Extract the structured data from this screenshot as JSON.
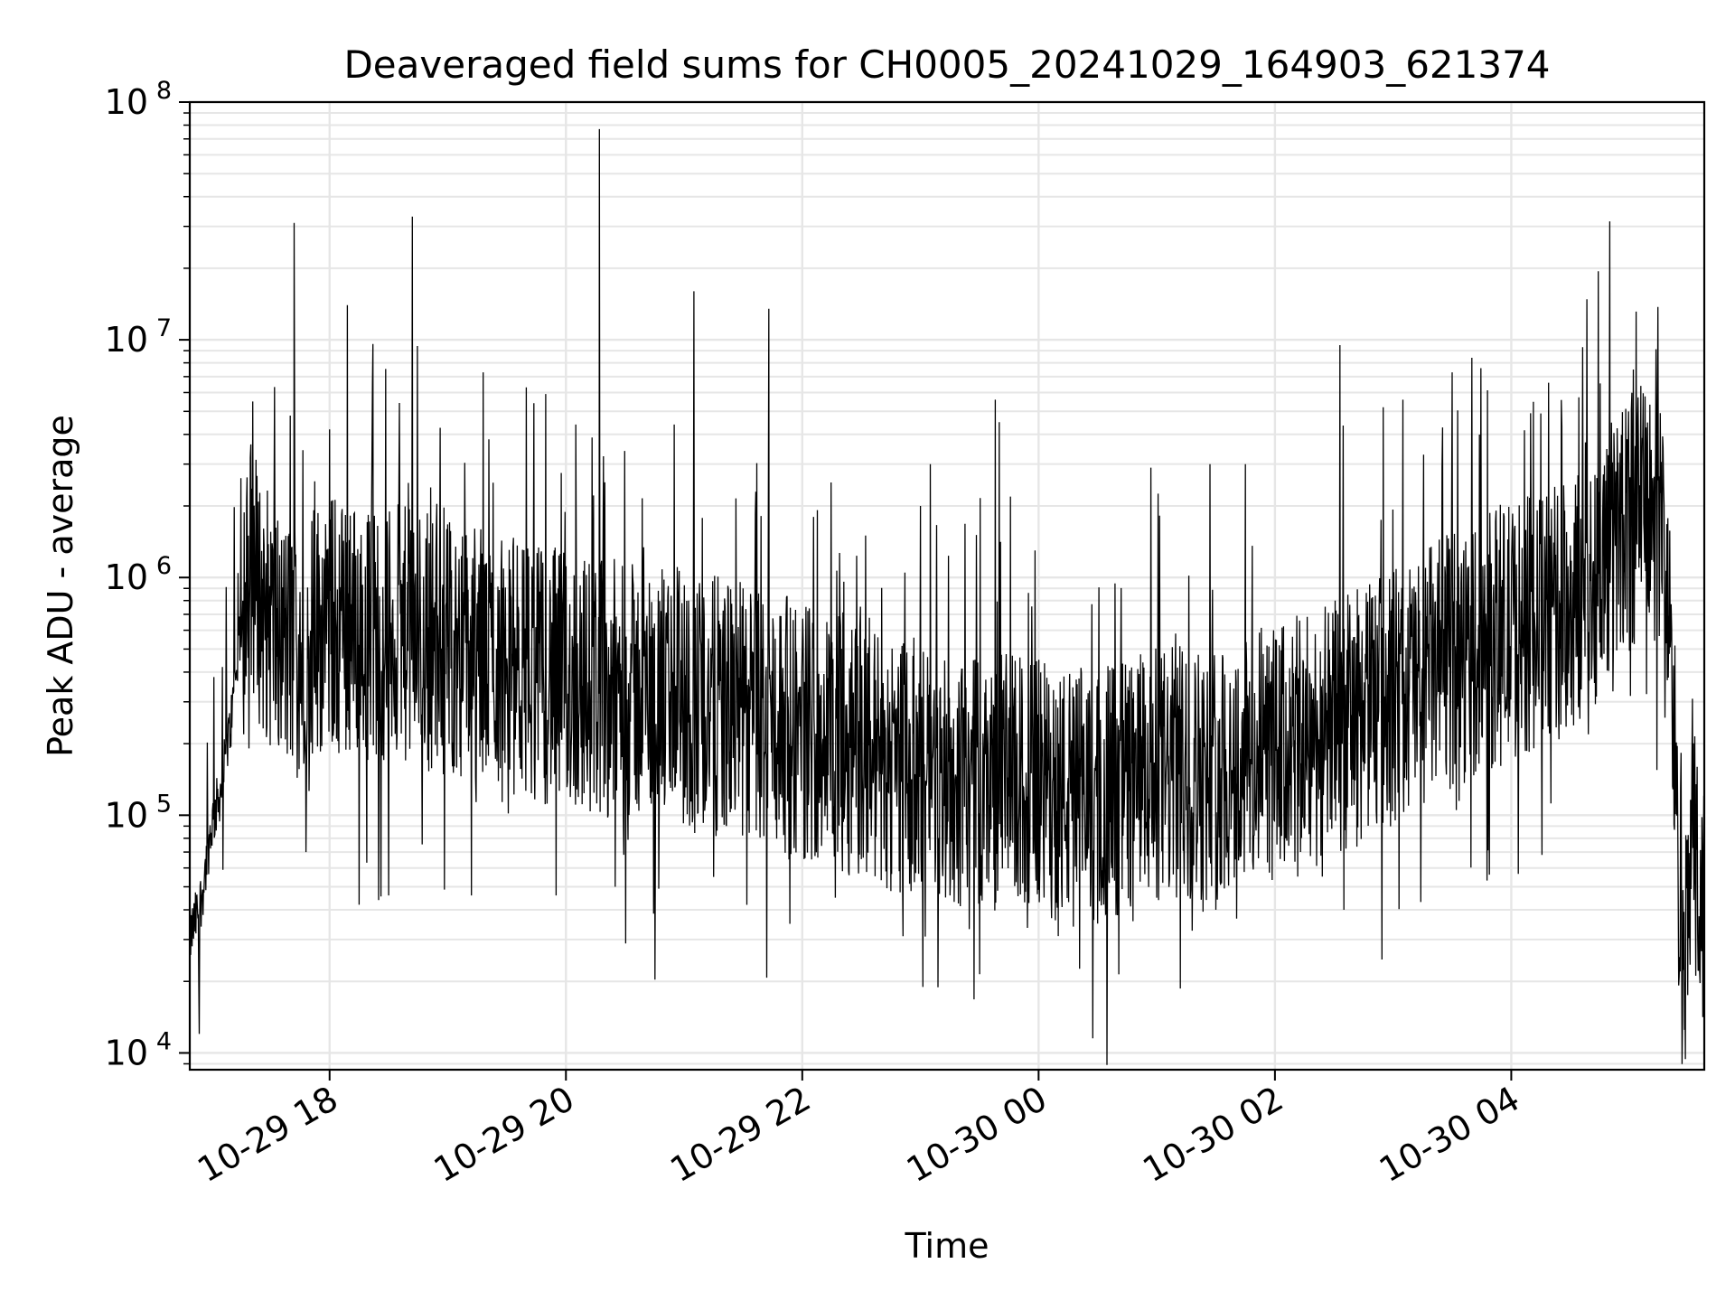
{
  "chart_data": {
    "type": "line",
    "title": "Deaveraged field sums for CH0005_20241029_164903_621374",
    "xlabel": "Time",
    "ylabel": "Peak ADU - average",
    "y_scale": "log",
    "ylim": [
      8500,
      100000000
    ],
    "xlim": [
      "2024-10-29 16:49",
      "2024-10-30 05:38"
    ],
    "x_ticks": [
      {
        "t": "2024-10-29 18:00",
        "label": "10-29 18"
      },
      {
        "t": "2024-10-29 20:00",
        "label": "10-29 20"
      },
      {
        "t": "2024-10-29 22:00",
        "label": "10-29 22"
      },
      {
        "t": "2024-10-30 00:00",
        "label": "10-30 00"
      },
      {
        "t": "2024-10-30 02:00",
        "label": "10-30 02"
      },
      {
        "t": "2024-10-30 04:00",
        "label": "10-30 04"
      }
    ],
    "y_ticks": [
      {
        "value": 10000,
        "base": "10",
        "exp": "4"
      },
      {
        "value": 100000,
        "base": "10",
        "exp": "5"
      },
      {
        "value": 1000000,
        "base": "10",
        "exp": "6"
      },
      {
        "value": 10000000,
        "base": "10",
        "exp": "7"
      },
      {
        "value": 100000000,
        "base": "10",
        "exp": "8"
      }
    ],
    "grid": true,
    "line_color": "#000000",
    "grid_color": "#e6e6e6",
    "series": [
      {
        "points": [
          [
            "2024-10-29 16:49",
            30000
          ],
          [
            "2024-10-29 16:55",
            45000
          ],
          [
            "2024-10-29 17:00",
            90000
          ],
          [
            "2024-10-29 17:05",
            130000
          ],
          [
            "2024-10-29 17:10",
            250000
          ],
          [
            "2024-10-29 17:15",
            600000
          ],
          [
            "2024-10-29 17:20",
            1200000
          ],
          [
            "2024-10-29 17:25",
            800000
          ],
          [
            "2024-10-29 17:30",
            650000
          ],
          [
            "2024-10-29 17:35",
            550000
          ],
          [
            "2024-10-29 17:40",
            500000
          ],
          [
            "2024-10-29 17:50",
            600000
          ],
          [
            "2024-10-29 18:00",
            650000
          ],
          [
            "2024-10-29 18:15",
            600000
          ],
          [
            "2024-10-29 18:30",
            580000
          ],
          [
            "2024-10-29 18:45",
            560000
          ],
          [
            "2024-10-29 19:00",
            520000
          ],
          [
            "2024-10-29 19:15",
            480000
          ],
          [
            "2024-10-29 19:30",
            440000
          ],
          [
            "2024-10-29 19:45",
            400000
          ],
          [
            "2024-10-29 20:00",
            370000
          ],
          [
            "2024-10-29 20:15",
            350000
          ],
          [
            "2024-10-29 20:30",
            330000
          ],
          [
            "2024-10-29 20:45",
            320000
          ],
          [
            "2024-10-29 21:00",
            300000
          ],
          [
            "2024-10-29 21:15",
            290000
          ],
          [
            "2024-10-29 21:30",
            270000
          ],
          [
            "2024-10-29 21:45",
            250000
          ],
          [
            "2024-10-29 22:00",
            230000
          ],
          [
            "2024-10-29 22:15",
            210000
          ],
          [
            "2024-10-29 22:30",
            190000
          ],
          [
            "2024-10-29 22:45",
            170000
          ],
          [
            "2024-10-29 23:00",
            155000
          ],
          [
            "2024-10-29 23:15",
            140000
          ],
          [
            "2024-10-29 23:30",
            135000
          ],
          [
            "2024-10-29 23:45",
            140000
          ],
          [
            "2024-10-30 00:00",
            130000
          ],
          [
            "2024-10-30 00:15",
            120000
          ],
          [
            "2024-10-30 00:30",
            125000
          ],
          [
            "2024-10-30 00:45",
            135000
          ],
          [
            "2024-10-30 01:00",
            145000
          ],
          [
            "2024-10-30 01:15",
            150000
          ],
          [
            "2024-10-30 01:30",
            155000
          ],
          [
            "2024-10-30 01:45",
            165000
          ],
          [
            "2024-10-30 02:00",
            180000
          ],
          [
            "2024-10-30 02:15",
            200000
          ],
          [
            "2024-10-30 02:30",
            230000
          ],
          [
            "2024-10-30 02:45",
            270000
          ],
          [
            "2024-10-30 03:00",
            320000
          ],
          [
            "2024-10-30 03:15",
            380000
          ],
          [
            "2024-10-30 03:30",
            450000
          ],
          [
            "2024-10-30 03:45",
            520000
          ],
          [
            "2024-10-30 04:00",
            600000
          ],
          [
            "2024-10-30 04:15",
            650000
          ],
          [
            "2024-10-30 04:30",
            750000
          ],
          [
            "2024-10-30 04:45",
            1100000
          ],
          [
            "2024-10-30 05:00",
            1800000
          ],
          [
            "2024-10-30 05:10",
            2000000
          ],
          [
            "2024-10-30 05:18",
            1500000
          ],
          [
            "2024-10-30 05:22",
            300000
          ],
          [
            "2024-10-30 05:25",
            60000
          ],
          [
            "2024-10-30 05:28",
            20000
          ],
          [
            "2024-10-30 05:32",
            80000
          ],
          [
            "2024-10-30 05:38",
            35000
          ]
        ],
        "spikes": [
          [
            "2024-10-29 17:21",
            5500000
          ],
          [
            "2024-10-29 17:40",
            4800000
          ],
          [
            "2024-10-29 17:42",
            31000000
          ],
          [
            "2024-10-29 18:00",
            4200000
          ],
          [
            "2024-10-29 18:09",
            14000000
          ],
          [
            "2024-10-29 18:22",
            9600000
          ],
          [
            "2024-10-29 18:40",
            2500000
          ],
          [
            "2024-10-29 18:42",
            33000000
          ],
          [
            "2024-10-29 19:18",
            7300000
          ],
          [
            "2024-10-29 20:05",
            4400000
          ],
          [
            "2024-10-29 20:17",
            77000000
          ],
          [
            "2024-10-29 20:55",
            4400000
          ],
          [
            "2024-10-29 21:05",
            16000000
          ],
          [
            "2024-10-29 21:43",
            13500000
          ],
          [
            "2024-10-29 23:00",
            2000000
          ],
          [
            "2024-10-29 23:05",
            3000000
          ],
          [
            "2024-10-29 23:38",
            5600000
          ],
          [
            "2024-10-29 23:40",
            4500000
          ],
          [
            "2024-10-30 00:57",
            2900000
          ],
          [
            "2024-10-30 01:27",
            3000000
          ],
          [
            "2024-10-30 01:45",
            3000000
          ],
          [
            "2024-10-30 02:33",
            9500000
          ],
          [
            "2024-10-30 02:55",
            5200000
          ],
          [
            "2024-10-30 03:05",
            5600000
          ],
          [
            "2024-10-30 03:30",
            7300000
          ],
          [
            "2024-10-30 03:40",
            8400000
          ],
          [
            "2024-10-30 04:15",
            4900000
          ],
          [
            "2024-10-30 04:50",
            31500000
          ],
          [
            "2024-10-30 05:02",
            7500000
          ]
        ],
        "dips": [
          [
            "2024-10-29 17:48",
            70000
          ],
          [
            "2024-10-29 18:15",
            42000
          ],
          [
            "2024-10-29 18:30",
            46000
          ],
          [
            "2024-10-29 19:12",
            46000
          ],
          [
            "2024-10-29 19:55",
            46000
          ],
          [
            "2024-10-29 20:25",
            50000
          ],
          [
            "2024-10-29 21:15",
            55000
          ],
          [
            "2024-10-29 22:45",
            48000
          ],
          [
            "2024-10-29 23:15",
            46000
          ],
          [
            "2024-10-30 00:10",
            31000
          ],
          [
            "2024-10-30 00:30",
            35000
          ],
          [
            "2024-10-30 01:00",
            45000
          ],
          [
            "2024-10-30 01:30",
            40000
          ],
          [
            "2024-10-30 02:35",
            40000
          ],
          [
            "2024-10-30 05:28",
            12500
          ]
        ]
      }
    ]
  }
}
